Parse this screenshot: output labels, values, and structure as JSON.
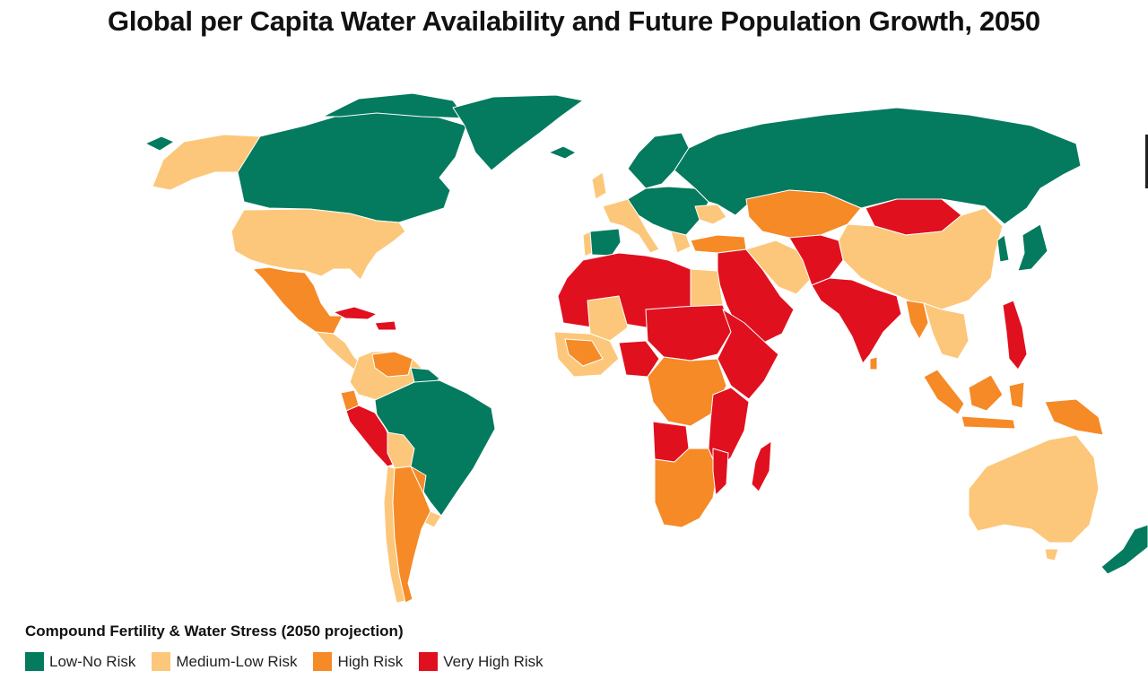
{
  "title": "Global per Capita Water Availability and Future Population Growth, 2050",
  "legend": {
    "title": "Compound Fertility & Water Stress (2050 projection)",
    "items": [
      {
        "label": "Low-No Risk",
        "color": "#047a5e"
      },
      {
        "label": "Medium-Low Risk",
        "color": "#fcc77a"
      },
      {
        "label": "High Risk",
        "color": "#f58a27"
      },
      {
        "label": "Very High Risk",
        "color": "#e0101f"
      }
    ]
  },
  "colors": {
    "low": "#047a5e",
    "medium": "#fcc77a",
    "high": "#f58a27",
    "very_high": "#e0101f",
    "border": "#ffffff"
  }
}
